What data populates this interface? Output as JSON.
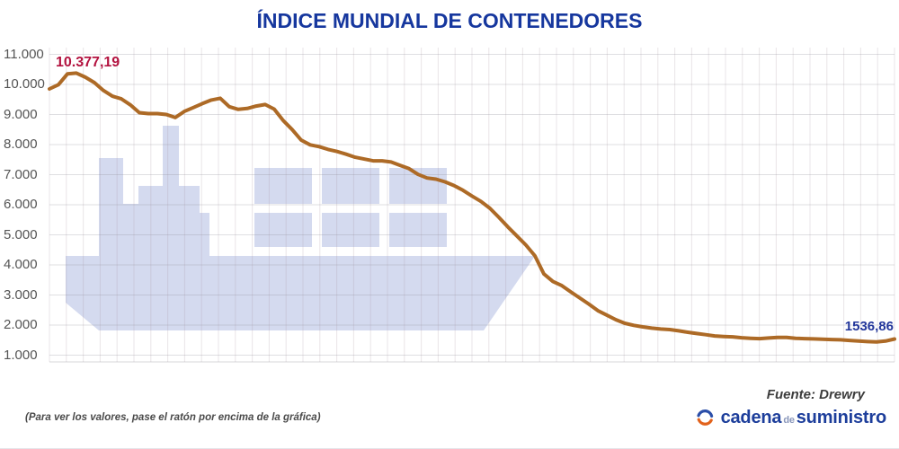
{
  "title": "ÍNDICE MUNDIAL DE CONTENEDORES",
  "annotations": {
    "peak_label": "10.377,19",
    "last_label": "1536,86"
  },
  "source": "Fuente: Drewry",
  "hover_note": "(Para ver los valores, pase el ratón por encima de la gráfica)",
  "brand": {
    "icon": "circular-arrows-icon",
    "word1": "cadena",
    "word2": "de",
    "word3": "suministro"
  },
  "colors": {
    "title": "#16379e",
    "line": "#ad6a26",
    "peak_label": "#b3123f",
    "last_label": "#23379b",
    "watermark": "#d4daef",
    "tick_text": "#555555",
    "logo_blue": "#1d3e9b",
    "logo_orange": "#e2621b",
    "grid_horizontal": "rgba(140,140,150,0.28)",
    "grid_vertical": "rgba(170,150,165,0.25)"
  },
  "chart_data": {
    "type": "line",
    "title": "ÍNDICE MUNDIAL DE CONTENEDORES",
    "xlabel": "",
    "ylabel": "",
    "ylim": [
      1000,
      11000
    ],
    "grid": true,
    "legend": "none",
    "y_ticks": [
      "11.000",
      "10.000",
      "9.000",
      "8.000",
      "7.000",
      "6.000",
      "5.000",
      "4.000",
      "3.000",
      "2.000",
      "1.000"
    ],
    "peak_value": 10377.19,
    "last_value": 1536.86,
    "series_name": "Índice mundial de contenedores",
    "values": [
      9850,
      9990,
      10350,
      10377.19,
      10240,
      10060,
      9800,
      9610,
      9520,
      9320,
      9060,
      9030,
      9030,
      9000,
      8900,
      9100,
      9230,
      9360,
      9480,
      9540,
      9260,
      9170,
      9200,
      9280,
      9330,
      9180,
      8800,
      8500,
      8150,
      7990,
      7930,
      7840,
      7770,
      7680,
      7580,
      7520,
      7460,
      7460,
      7420,
      7310,
      7200,
      7010,
      6890,
      6850,
      6760,
      6640,
      6480,
      6290,
      6110,
      5880,
      5580,
      5260,
      4960,
      4660,
      4300,
      3700,
      3450,
      3310,
      3100,
      2900,
      2700,
      2480,
      2330,
      2180,
      2060,
      1990,
      1940,
      1900,
      1870,
      1850,
      1810,
      1760,
      1720,
      1680,
      1640,
      1620,
      1610,
      1580,
      1560,
      1550,
      1570,
      1590,
      1590,
      1560,
      1550,
      1540,
      1530,
      1520,
      1510,
      1490,
      1470,
      1450,
      1440,
      1470,
      1536.86
    ]
  }
}
